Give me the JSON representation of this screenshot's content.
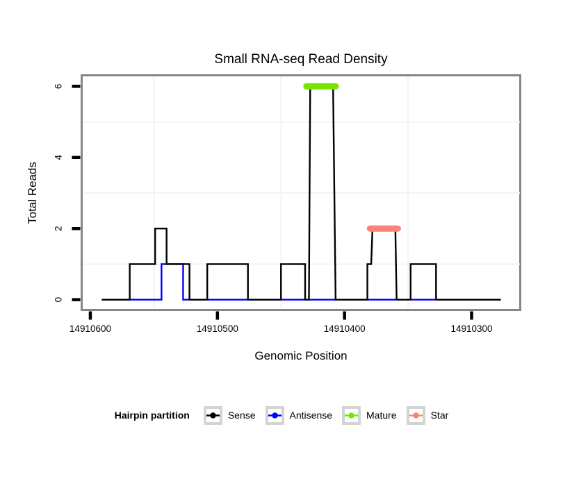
{
  "title": "Small RNA-seq Read Density",
  "chart_data": {
    "type": "line",
    "subtype": "step-density",
    "title": "Small RNA-seq Read Density",
    "xlabel": "Genomic Position",
    "ylabel": "Total Reads",
    "x_reversed": true,
    "xlim": [
      14910606,
      14910262
    ],
    "ylim": [
      -0.26,
      6.28
    ],
    "grid": {
      "on": true,
      "x_values": [
        14910550,
        14910450,
        14910350
      ],
      "y_values": [
        1,
        3,
        5
      ],
      "color": "#f3f3f3"
    },
    "x_ticks": [
      {
        "value": 14910600,
        "label": "14910600"
      },
      {
        "value": 14910500,
        "label": "14910500"
      },
      {
        "value": 14910400,
        "label": "14910400"
      },
      {
        "value": 14910300,
        "label": "14910300"
      }
    ],
    "y_ticks": [
      {
        "value": 0,
        "label": "0"
      },
      {
        "value": 2,
        "label": "2"
      },
      {
        "value": 4,
        "label": "4"
      },
      {
        "value": 6,
        "label": "6"
      }
    ],
    "series": [
      {
        "name": "Antisense",
        "color": "#0000ff",
        "kind": "step-line",
        "points": [
          [
            14910591,
            0
          ],
          [
            14910544,
            0
          ],
          [
            14910544,
            1
          ],
          [
            14910527,
            1
          ],
          [
            14910527,
            0
          ],
          [
            14910277,
            0
          ]
        ]
      },
      {
        "name": "Sense",
        "color": "#000000",
        "kind": "step-line",
        "points": [
          [
            14910591,
            0
          ],
          [
            14910569,
            0
          ],
          [
            14910569,
            1
          ],
          [
            14910549,
            1
          ],
          [
            14910549,
            2
          ],
          [
            14910540,
            2
          ],
          [
            14910540,
            1
          ],
          [
            14910522,
            1
          ],
          [
            14910522,
            0
          ],
          [
            14910508,
            0
          ],
          [
            14910508,
            1
          ],
          [
            14910476,
            1
          ],
          [
            14910476,
            0
          ],
          [
            14910450,
            0
          ],
          [
            14910450,
            1
          ],
          [
            14910431,
            1
          ],
          [
            14910431,
            0
          ],
          [
            14910428,
            0
          ],
          [
            14910427,
            6
          ],
          [
            14910409,
            6
          ],
          [
            14910407,
            0
          ],
          [
            14910382,
            0
          ],
          [
            14910382,
            1
          ],
          [
            14910379,
            1
          ],
          [
            14910378,
            2
          ],
          [
            14910360,
            2
          ],
          [
            14910359,
            0
          ],
          [
            14910348,
            0
          ],
          [
            14910348,
            1
          ],
          [
            14910328,
            1
          ],
          [
            14910328,
            0
          ],
          [
            14910277,
            0
          ]
        ]
      },
      {
        "name": "Mature",
        "color": "#74e600",
        "kind": "segment",
        "y": 6,
        "x_from": 14910430,
        "x_to": 14910407
      },
      {
        "name": "Star",
        "color": "#f98377",
        "kind": "segment",
        "y": 2,
        "x_from": 14910380,
        "x_to": 14910358
      }
    ]
  },
  "legend": {
    "title": "Hairpin partition",
    "items": [
      {
        "label": "Sense",
        "color": "#000000"
      },
      {
        "label": "Antisense",
        "color": "#0000ff"
      },
      {
        "label": "Mature",
        "color": "#74e600"
      },
      {
        "label": "Star",
        "color": "#f98377"
      }
    ]
  },
  "frame_color": "#868686"
}
